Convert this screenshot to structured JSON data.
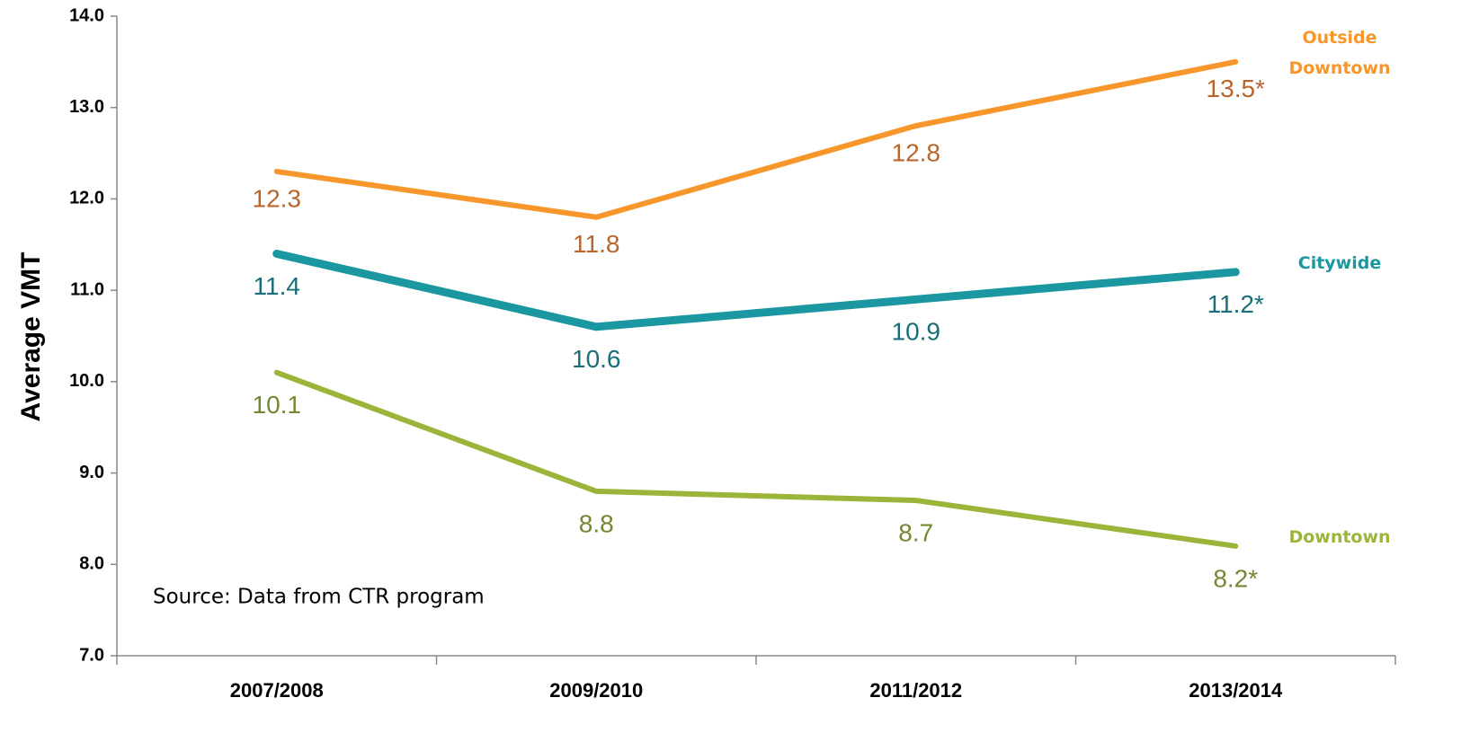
{
  "chart_data": {
    "type": "line",
    "y_label": "Average VMT",
    "annotation": "Source: Data from CTR program",
    "categories": [
      "2007/2008",
      "2009/2010",
      "2011/2012",
      "2013/2014"
    ],
    "ylim": [
      7,
      14
    ],
    "yticks": [
      {
        "value": 7,
        "label": "7.0"
      },
      {
        "value": 8,
        "label": "8.0"
      },
      {
        "value": 9,
        "label": "9.0"
      },
      {
        "value": 10,
        "label": "10.0"
      },
      {
        "value": 11,
        "label": "11.0"
      },
      {
        "value": 12,
        "label": "12.0"
      },
      {
        "value": 13,
        "label": "13.0"
      },
      {
        "value": 14,
        "label": "14.0"
      }
    ],
    "grid": false,
    "legend": "right",
    "series": [
      {
        "name": "Outside Downtown",
        "color": "#f7962a",
        "label_color": "#b8662c",
        "values": [
          12.3,
          11.8,
          12.8,
          13.5
        ],
        "value_labels": [
          "12.3",
          "11.8",
          "12.8",
          "13.5*"
        ]
      },
      {
        "name": "Citywide",
        "color": "#1a97a0",
        "label_color": "#1a6e78",
        "values": [
          11.4,
          10.6,
          10.9,
          11.2
        ],
        "value_labels": [
          "11.4",
          "10.6",
          "10.9",
          "11.2*"
        ]
      },
      {
        "name": "Downtown",
        "color": "#9bb53a",
        "label_color": "#728832",
        "values": [
          10.1,
          8.8,
          8.7,
          8.2
        ],
        "value_labels": [
          "10.1",
          "8.8",
          "8.7",
          "8.2*"
        ]
      }
    ]
  }
}
